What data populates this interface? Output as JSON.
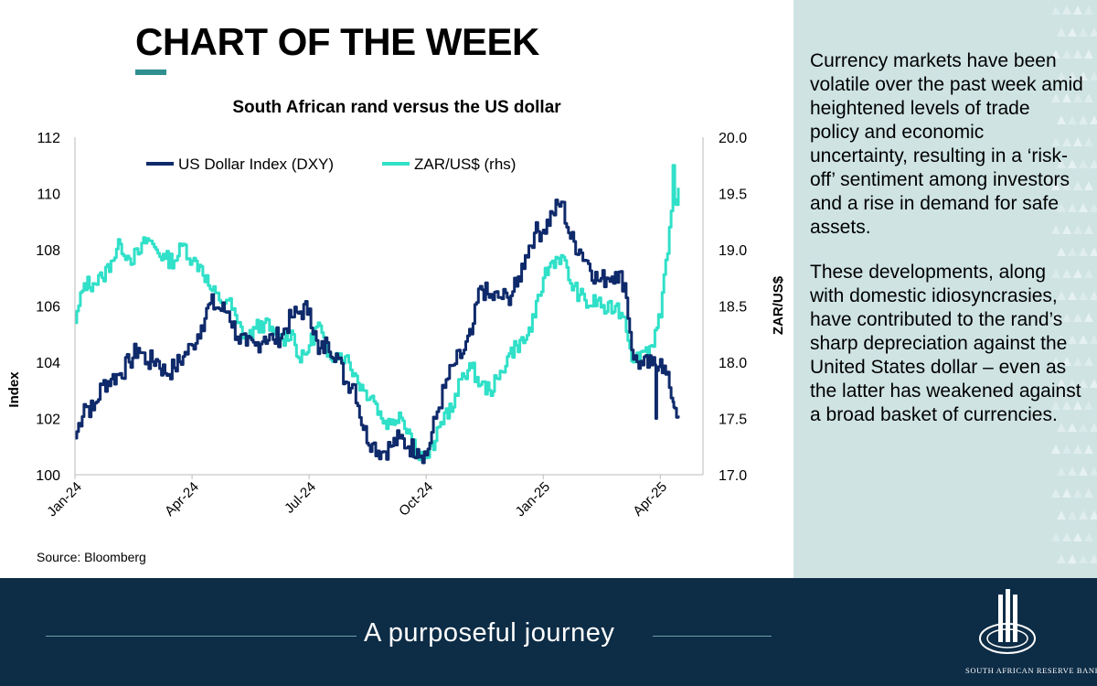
{
  "header": {
    "title": "CHART OF THE WEEK"
  },
  "commentary": {
    "paragraphs": [
      "Currency markets have been volatile over the past week amid heightened levels of trade policy and economic uncertainty, resulting in a ‘risk-off’ sentiment among investors and a rise in demand for safe assets.",
      "These developments, along with domestic idiosyncrasies, have contributed to the rand’s sharp depreciation against the United States dollar – even as the latter has weakened against a broad basket of currencies."
    ]
  },
  "footer": {
    "tagline": "A purposeful journey",
    "bank_name": "SOUTH AFRICAN RESERVE BANK"
  },
  "chart_data": {
    "type": "line",
    "title": "South African rand versus the US dollar",
    "source": "Source: Bloomberg",
    "x_tick_labels": [
      "Jan-24",
      "Apr-24",
      "Jul-24",
      "Oct-24",
      "Jan-25",
      "Apr-25"
    ],
    "x_tick_weeks": [
      0,
      13,
      26,
      39,
      52,
      65
    ],
    "ylabel_left": "Index",
    "ylabel_right": "ZAR/US$",
    "ylim_left": [
      100,
      112
    ],
    "ylim_right": [
      17.0,
      20.0
    ],
    "yticks_left": [
      "100",
      "102",
      "104",
      "106",
      "108",
      "110",
      "112"
    ],
    "yticks_right": [
      "17.0",
      "17.5",
      "18.0",
      "18.5",
      "19.0",
      "19.5",
      "20.0"
    ],
    "legend": {
      "placement": "top-center"
    },
    "colors": {
      "dxy": "#0f2a6b",
      "zar": "#30e0c8"
    },
    "series": [
      {
        "name": "US Dollar Index (DXY)",
        "axis": "left",
        "weeks": [
          0,
          1,
          2,
          3,
          4,
          5,
          6,
          7,
          8,
          9,
          10,
          11,
          12,
          13,
          14,
          15,
          16,
          17,
          18,
          19,
          20,
          21,
          22,
          23,
          24,
          25,
          26,
          27,
          28,
          29,
          30,
          31,
          32,
          33,
          34,
          35,
          36,
          37,
          38,
          39,
          40,
          41,
          42,
          43,
          44,
          45,
          46,
          47,
          48,
          49,
          50,
          51,
          52,
          53,
          54,
          55,
          56,
          57,
          58,
          59,
          60,
          61,
          62,
          63,
          64,
          65,
          66,
          67
        ],
        "values": [
          101.3,
          102.5,
          102.3,
          103.2,
          103.4,
          103.6,
          104.0,
          104.5,
          104.0,
          104.1,
          103.6,
          103.8,
          104.2,
          104.6,
          105.3,
          106.1,
          105.9,
          105.8,
          104.9,
          104.6,
          104.6,
          104.9,
          104.8,
          105.0,
          105.6,
          105.8,
          105.9,
          104.3,
          104.7,
          104.3,
          103.3,
          103.2,
          101.6,
          101.1,
          100.8,
          101.0,
          101.3,
          101.0,
          100.9,
          100.7,
          102.0,
          103.1,
          103.9,
          104.3,
          105.0,
          106.7,
          106.3,
          106.3,
          106.3,
          106.7,
          107.8,
          108.6,
          108.7,
          109.3,
          109.7,
          108.4,
          108.0,
          107.5,
          106.9,
          107.0,
          107.2,
          106.8,
          104.1,
          103.9,
          103.9,
          104.1,
          103.1,
          102.1
        ],
        "extra_points": [
          [
            64.5,
            102.0
          ],
          [
            66.5,
            102.4
          ]
        ]
      },
      {
        "name": "ZAR/US$ (rhs)",
        "axis": "right",
        "weeks": [
          0,
          1,
          2,
          3,
          4,
          5,
          6,
          7,
          8,
          9,
          10,
          11,
          12,
          13,
          14,
          15,
          16,
          17,
          18,
          19,
          20,
          21,
          22,
          23,
          24,
          25,
          26,
          27,
          28,
          29,
          30,
          31,
          32,
          33,
          34,
          35,
          36,
          37,
          38,
          39,
          40,
          41,
          42,
          43,
          44,
          45,
          46,
          47,
          48,
          49,
          50,
          51,
          52,
          53,
          54,
          55,
          56,
          57,
          58,
          59,
          60,
          61,
          62,
          63,
          64,
          65,
          66,
          67
        ],
        "values": [
          18.35,
          18.7,
          18.7,
          18.75,
          18.9,
          19.05,
          18.92,
          18.96,
          19.1,
          19.0,
          18.92,
          18.9,
          19.05,
          18.9,
          18.85,
          18.65,
          18.55,
          18.55,
          18.35,
          18.2,
          18.3,
          18.35,
          18.25,
          18.2,
          18.28,
          18.0,
          18.15,
          18.35,
          18.05,
          18.08,
          18.05,
          17.9,
          17.75,
          17.7,
          17.5,
          17.45,
          17.55,
          17.4,
          17.2,
          17.15,
          17.3,
          17.55,
          17.6,
          17.9,
          17.95,
          17.8,
          17.75,
          17.85,
          18.05,
          18.15,
          18.2,
          18.4,
          18.75,
          18.9,
          18.95,
          18.7,
          18.6,
          18.5,
          18.55,
          18.45,
          18.5,
          18.4,
          18.0,
          18.1,
          18.15,
          18.4,
          19.2,
          19.55
        ],
        "extra_points": [
          [
            66.4,
            19.75
          ],
          [
            66.8,
            19.4
          ]
        ]
      }
    ]
  }
}
